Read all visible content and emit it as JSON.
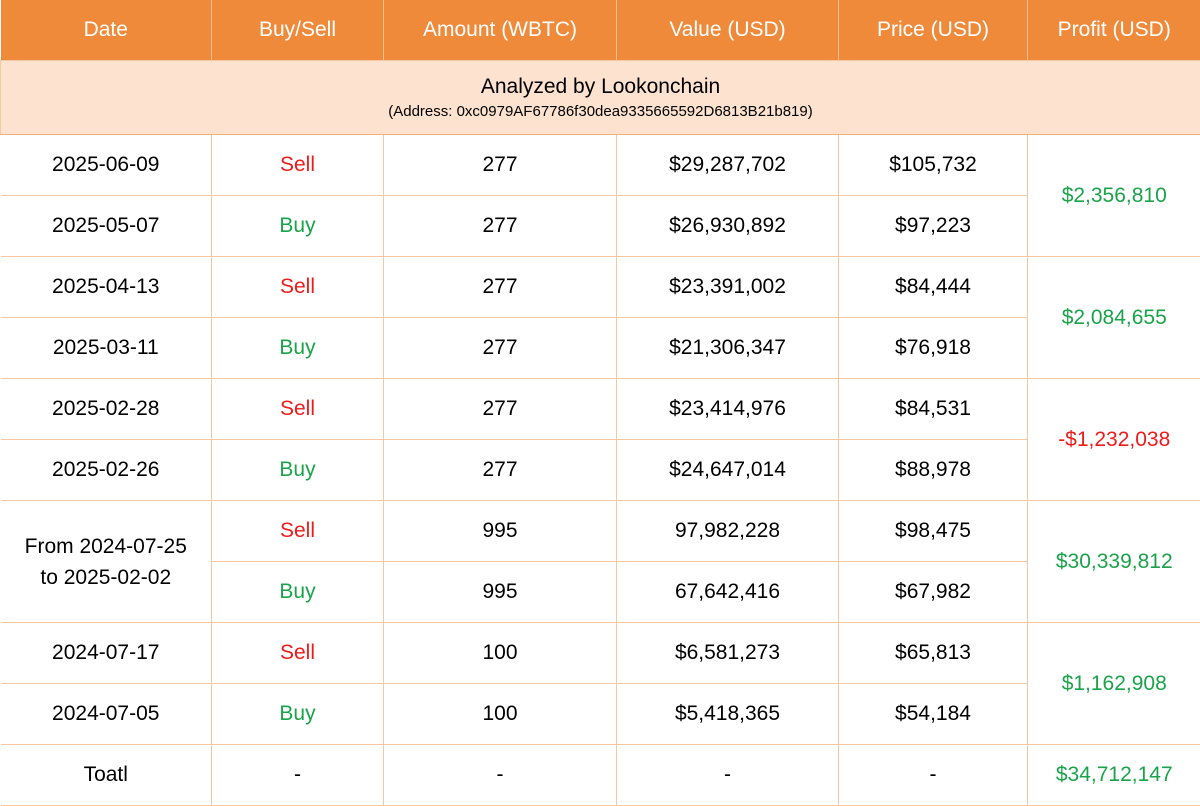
{
  "headers": [
    "Date",
    "Buy/Sell",
    "Amount (WBTC)",
    "Value (USD)",
    "Price (USD)",
    "Profit (USD)"
  ],
  "banner": {
    "title": "Analyzed by Lookonchain",
    "address": "(Address: 0xc0979AF67786f30dea9335665592D6813B21b819)"
  },
  "groups": [
    {
      "profit": "$2,356,810",
      "profit_sign": "positive",
      "rows": [
        {
          "date": "2025-06-09",
          "side": "Sell",
          "amount": "277",
          "value": "$29,287,702",
          "price": "$105,732"
        },
        {
          "date": "2025-05-07",
          "side": "Buy",
          "amount": "277",
          "value": "$26,930,892",
          "price": "$97,223"
        }
      ]
    },
    {
      "profit": "$2,084,655",
      "profit_sign": "positive",
      "rows": [
        {
          "date": "2025-04-13",
          "side": "Sell",
          "amount": "277",
          "value": "$23,391,002",
          "price": "$84,444"
        },
        {
          "date": "2025-03-11",
          "side": "Buy",
          "amount": "277",
          "value": "$21,306,347",
          "price": "$76,918"
        }
      ]
    },
    {
      "profit": "-$1,232,038",
      "profit_sign": "negative",
      "rows": [
        {
          "date": "2025-02-28",
          "side": "Sell",
          "amount": "277",
          "value": "$23,414,976",
          "price": "$84,531"
        },
        {
          "date": "2025-02-26",
          "side": "Buy",
          "amount": "277",
          "value": "$24,647,014",
          "price": "$88,978"
        }
      ]
    },
    {
      "profit": "$30,339,812",
      "profit_sign": "positive",
      "merged_date": {
        "line1": "From 2024-07-25",
        "line2": "to 2025-02-02"
      },
      "rows": [
        {
          "side": "Sell",
          "amount": "995",
          "value": "97,982,228",
          "price": "$98,475"
        },
        {
          "side": "Buy",
          "amount": "995",
          "value": "67,642,416",
          "price": "$67,982"
        }
      ]
    },
    {
      "profit": "$1,162,908",
      "profit_sign": "positive",
      "rows": [
        {
          "date": "2024-07-17",
          "side": "Sell",
          "amount": "100",
          "value": "$6,581,273",
          "price": "$65,813"
        },
        {
          "date": "2024-07-05",
          "side": "Buy",
          "amount": "100",
          "value": "$5,418,365",
          "price": "$54,184"
        }
      ]
    }
  ],
  "total": {
    "label": "Toatl",
    "side": "-",
    "amount": "-",
    "value": "-",
    "price": "-",
    "profit": "$34,712,147"
  },
  "colors": {
    "header_bg": "#ef8a3b",
    "banner_bg": "#fde3cf",
    "sell": "#ee1b1b",
    "buy": "#1aa34a",
    "profit_positive": "#1aa34a",
    "profit_negative": "#ee1b1b"
  }
}
